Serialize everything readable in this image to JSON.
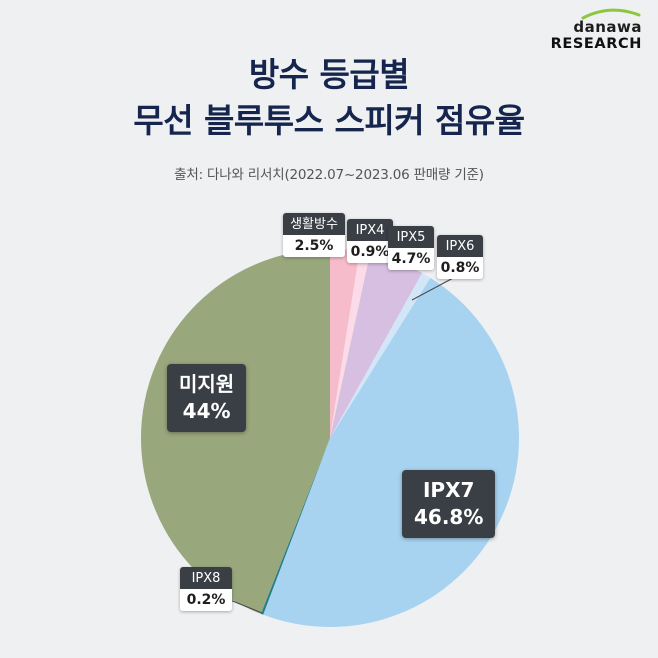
{
  "logo": {
    "brand": "danawa",
    "sub": "RESEARCH",
    "accent_color": "#8DC63F"
  },
  "header": {
    "title_line1": "방수 등급별",
    "title_line2": "무선 블루투스 스피커 점유율",
    "source": "출처: 다나와 리서치(2022.07~2023.06 판매량 기준)"
  },
  "chart_data": {
    "type": "pie",
    "title": "방수 등급별 무선 블루투스 스피커 점유율",
    "source": "출처: 다나와 리서치(2022.07~2023.06 판매량 기준)",
    "unit": "%",
    "start_angle_deg": 0,
    "direction": "clockwise",
    "legend": "none",
    "label_badge_color": "#3A3F46",
    "slices": [
      {
        "label": "생활방수",
        "value": 2.5,
        "pct_text": "2.5%",
        "color": "#F7BCCC",
        "label_style": "outside"
      },
      {
        "label": "IPX4",
        "value": 0.9,
        "pct_text": "0.9%",
        "color": "#FADBE7",
        "label_style": "outside"
      },
      {
        "label": "IPX5",
        "value": 4.7,
        "pct_text": "4.7%",
        "color": "#D6BFE1",
        "label_style": "outside"
      },
      {
        "label": "IPX6",
        "value": 0.8,
        "pct_text": "0.8%",
        "color": "#D2E6F7",
        "label_style": "outside"
      },
      {
        "label": "IPX7",
        "value": 46.8,
        "pct_text": "46.8%",
        "color": "#A8D3F0",
        "label_style": "inside"
      },
      {
        "label": "IPX8",
        "value": 0.2,
        "pct_text": "0.2%",
        "color": "#22808A",
        "label_style": "outside"
      },
      {
        "label": "미지원",
        "value": 44,
        "pct_text": "44%",
        "color": "#99A77D",
        "label_style": "inside"
      }
    ]
  }
}
